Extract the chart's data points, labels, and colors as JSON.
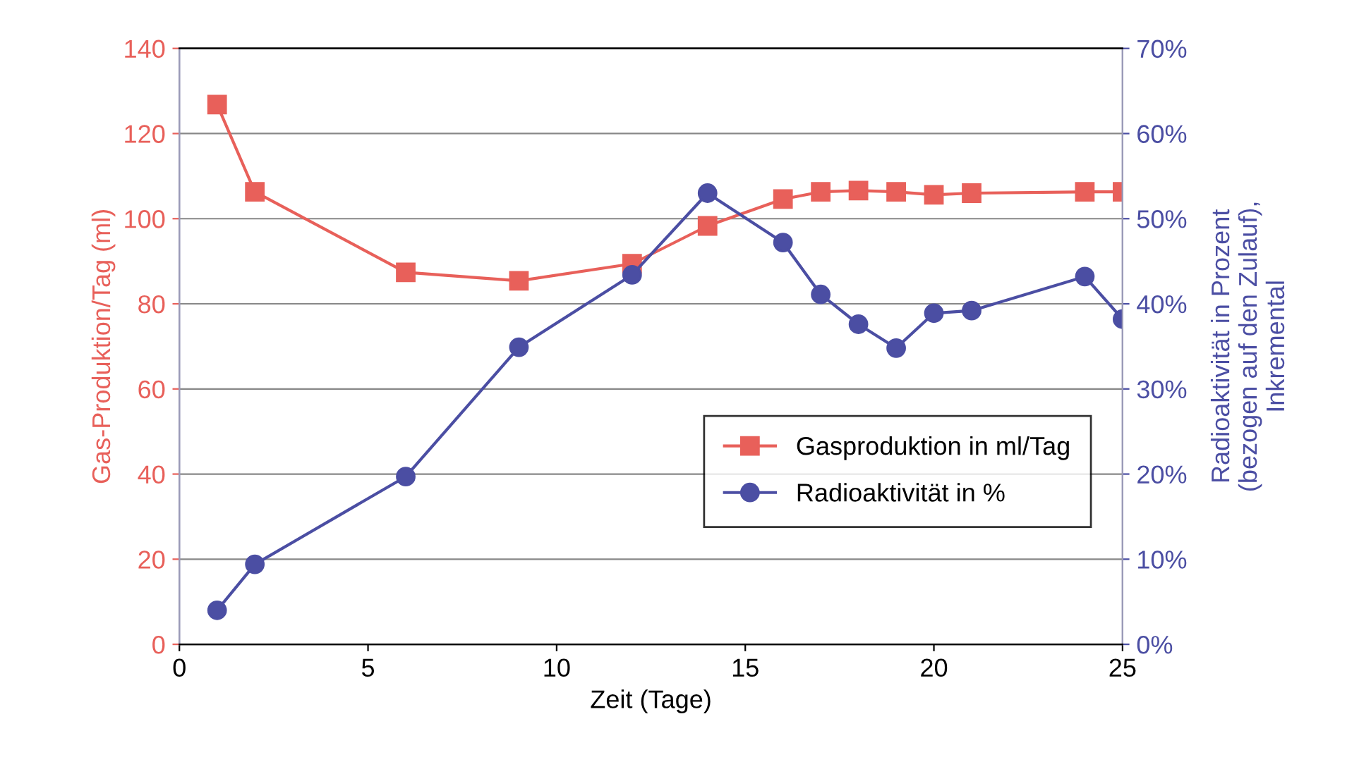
{
  "chart_data": {
    "type": "line",
    "xlabel": "Zeit (Tage)",
    "ylabel": "Gas-Produktion/Tag (ml)",
    "y2label": "Radioaktivität in Prozent\n(bezogen auf den Zulauf),\nInkremental",
    "x": [
      1,
      2,
      6,
      9,
      12,
      14,
      16,
      17,
      18,
      19,
      20,
      21,
      24,
      25
    ],
    "series": [
      {
        "name": "Gasproduktion in ml/Tag",
        "color": "#e8605a",
        "marker": "square",
        "values": [
          126.8,
          106.3,
          87.4,
          85.4,
          89.4,
          98.3,
          104.6,
          106.3,
          106.6,
          106.3,
          105.6,
          106,
          106.3,
          106.3
        ]
      },
      {
        "name": "Radioaktivität in %",
        "color": "#4b4ea3",
        "marker": "circle",
        "axis": "y2",
        "values": [
          4.0,
          9.4,
          19.7,
          34.9,
          43.4,
          53.0,
          47.2,
          41.1,
          37.6,
          34.8,
          38.9,
          39.2,
          43.2,
          38.2
        ]
      }
    ],
    "xlim": [
      0,
      25
    ],
    "xticks": [
      0,
      5,
      10,
      15,
      20,
      25
    ],
    "ylim": [
      0,
      140
    ],
    "yticks": [
      0,
      20,
      40,
      60,
      80,
      100,
      120,
      140
    ],
    "y2lim": [
      0,
      70
    ],
    "y2ticks": [
      {
        "value": 0,
        "label": "0%"
      },
      {
        "value": 10,
        "label": "10%"
      },
      {
        "value": 20,
        "label": "20%"
      },
      {
        "value": 30,
        "label": "30%"
      },
      {
        "value": 40,
        "label": "40%"
      },
      {
        "value": 50,
        "label": "50%"
      },
      {
        "value": 60,
        "label": "60%"
      },
      {
        "value": 70,
        "label": "70%"
      }
    ],
    "grid": "y",
    "legend": "center right"
  }
}
